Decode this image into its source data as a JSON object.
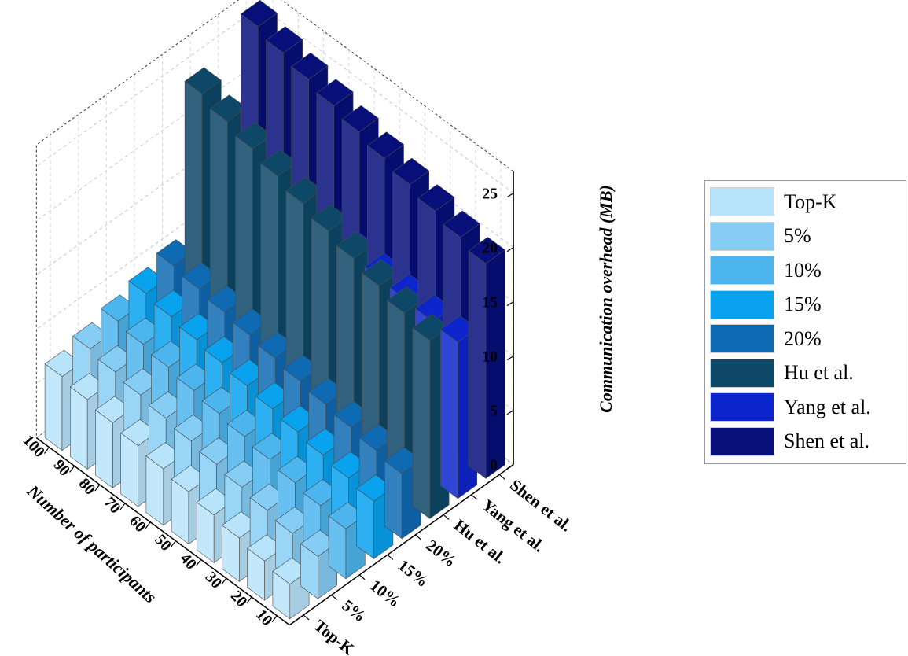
{
  "chart_data": {
    "type": "bar3d",
    "x": [
      10,
      20,
      30,
      40,
      50,
      60,
      70,
      80,
      90,
      100
    ],
    "xlabel": "Number of participants",
    "ylabel": "",
    "zlabel": "Communication overhead (MB)",
    "zlim": [
      0,
      27
    ],
    "zticks": [
      0,
      5,
      10,
      15,
      20,
      25
    ],
    "grid": true,
    "legend_position": "right",
    "series": [
      {
        "name": "Top-K",
        "color": "#b8e4fb",
        "values": [
          3.2,
          3.6,
          4.0,
          4.4,
          4.8,
          5.2,
          5.6,
          6.0,
          6.4,
          6.8
        ]
      },
      {
        "name": "5%",
        "color": "#86cdf5",
        "values": [
          3.9,
          4.3,
          4.7,
          5.1,
          5.5,
          5.9,
          6.3,
          6.7,
          7.1,
          7.5
        ]
      },
      {
        "name": "10%",
        "color": "#4db5ee",
        "values": [
          4.6,
          5.0,
          5.4,
          5.8,
          6.2,
          6.6,
          7.0,
          7.4,
          7.8,
          8.2
        ]
      },
      {
        "name": "15%",
        "color": "#08a2ef",
        "values": [
          5.3,
          5.7,
          6.1,
          6.5,
          6.9,
          7.3,
          7.7,
          8.1,
          8.5,
          8.9
        ]
      },
      {
        "name": "20%",
        "color": "#0f6ab4",
        "values": [
          6.0,
          6.4,
          6.8,
          7.2,
          7.6,
          8.0,
          8.4,
          8.8,
          9.2,
          9.6
        ]
      },
      {
        "name": "Hu et al.",
        "color": "#0d4868",
        "values": [
          16.4,
          17.2,
          18.0,
          18.8,
          19.6,
          20.4,
          21.2,
          22.0,
          22.8,
          23.6
        ]
      },
      {
        "name": "Yang et al.",
        "color": "#0c25cc",
        "values": [
          14.4,
          14.6,
          14.8,
          15.0,
          15.2,
          15.4,
          15.6,
          15.8,
          16.0,
          16.2
        ]
      },
      {
        "name": "Shen et al.",
        "color": "#060f7a",
        "values": [
          19.8,
          20.5,
          21.2,
          21.9,
          22.6,
          23.3,
          24.0,
          24.7,
          25.4,
          26.1
        ]
      }
    ]
  }
}
